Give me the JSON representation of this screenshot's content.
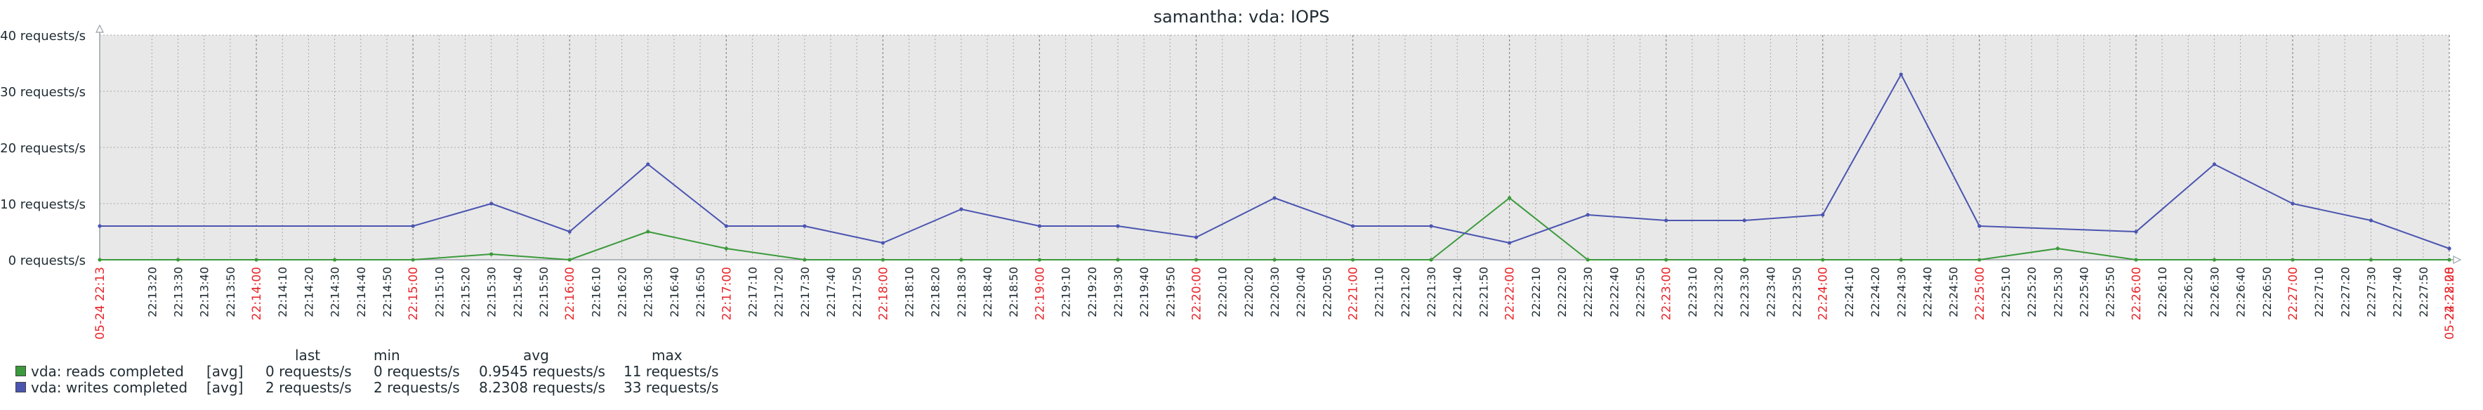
{
  "chart_data": {
    "type": "line",
    "title": "samantha: vda: IOPS",
    "xlabel": "",
    "ylabel": "",
    "start_label": "05-24 22:13",
    "end_label": "05-24 22:28",
    "x_major_labels": [
      "22:14:00",
      "22:15:00",
      "22:16:00",
      "22:17:00",
      "22:18:00",
      "22:19:00",
      "22:20:00",
      "22:21:00",
      "22:22:00",
      "22:23:00",
      "22:24:00",
      "22:25:00",
      "22:26:00",
      "22:27:00",
      "22:28:00"
    ],
    "x_minor_labels": [
      "22:13:20",
      "22:13:30",
      "22:13:40",
      "22:13:50",
      "22:14:10",
      "22:14:20",
      "22:14:30",
      "22:14:40",
      "22:14:50",
      "22:15:10",
      "22:15:20",
      "22:15:30",
      "22:15:40",
      "22:15:50",
      "22:16:10",
      "22:16:20",
      "22:16:30",
      "22:16:40",
      "22:16:50",
      "22:17:10",
      "22:17:20",
      "22:17:30",
      "22:17:40",
      "22:17:50",
      "22:18:10",
      "22:18:20",
      "22:18:30",
      "22:18:40",
      "22:18:50",
      "22:19:10",
      "22:19:20",
      "22:19:30",
      "22:19:40",
      "22:19:50",
      "22:20:10",
      "22:20:20",
      "22:20:30",
      "22:20:40",
      "22:20:50",
      "22:21:10",
      "22:21:20",
      "22:21:30",
      "22:21:40",
      "22:21:50",
      "22:22:10",
      "22:22:20",
      "22:22:30",
      "22:22:40",
      "22:22:50",
      "22:23:10",
      "22:23:20",
      "22:23:30",
      "22:23:40",
      "22:23:50",
      "22:24:10",
      "22:24:20",
      "22:24:30",
      "22:24:40",
      "22:24:50",
      "22:25:10",
      "22:25:20",
      "22:25:30",
      "22:25:40",
      "22:25:50",
      "22:26:10",
      "22:26:20",
      "22:26:30",
      "22:26:40",
      "22:26:50",
      "22:27:10",
      "22:27:20",
      "22:27:30",
      "22:27:40",
      "22:27:50"
    ],
    "y_ticks": [
      "0 requests/s",
      "10 requests/s",
      "20 requests/s",
      "30 requests/s",
      "40 requests/s"
    ],
    "ylim": [
      0,
      40
    ],
    "grid": true,
    "legend_position": "bottom-left",
    "colors": {
      "plot_bg": "#e8e8e8",
      "grid": "#a9a9a9",
      "axis": "#9aa3a8",
      "major_label": "#e8262b",
      "text": "#1f2c33"
    },
    "series": [
      {
        "name": "vda: reads completed",
        "color": "#3b9a3b",
        "points": [
          {
            "x": "22:13:00",
            "y": 0
          },
          {
            "x": "22:13:30",
            "y": 0
          },
          {
            "x": "22:14:00",
            "y": 0
          },
          {
            "x": "22:14:30",
            "y": 0
          },
          {
            "x": "22:15:00",
            "y": 0
          },
          {
            "x": "22:15:30",
            "y": 1
          },
          {
            "x": "22:16:00",
            "y": 0
          },
          {
            "x": "22:16:30",
            "y": 5
          },
          {
            "x": "22:17:00",
            "y": 2
          },
          {
            "x": "22:17:30",
            "y": 0
          },
          {
            "x": "22:18:00",
            "y": 0
          },
          {
            "x": "22:18:30",
            "y": 0
          },
          {
            "x": "22:19:00",
            "y": 0
          },
          {
            "x": "22:19:30",
            "y": 0
          },
          {
            "x": "22:20:00",
            "y": 0
          },
          {
            "x": "22:20:30",
            "y": 0
          },
          {
            "x": "22:21:00",
            "y": 0
          },
          {
            "x": "22:21:30",
            "y": 0
          },
          {
            "x": "22:22:00",
            "y": 11
          },
          {
            "x": "22:22:30",
            "y": 0
          },
          {
            "x": "22:23:00",
            "y": 0
          },
          {
            "x": "22:23:30",
            "y": 0
          },
          {
            "x": "22:24:00",
            "y": 0
          },
          {
            "x": "22:24:30",
            "y": 0
          },
          {
            "x": "22:25:00",
            "y": 0
          },
          {
            "x": "22:25:30",
            "y": 2
          },
          {
            "x": "22:26:00",
            "y": 0
          },
          {
            "x": "22:26:30",
            "y": 0
          },
          {
            "x": "22:27:00",
            "y": 0
          },
          {
            "x": "22:27:30",
            "y": 0
          },
          {
            "x": "22:28:00",
            "y": 0
          }
        ]
      },
      {
        "name": "vda: writes completed",
        "color": "#4b55b0",
        "points": [
          {
            "x": "22:13:00",
            "y": 6
          },
          {
            "x": "22:15:00",
            "y": 6
          },
          {
            "x": "22:15:30",
            "y": 10
          },
          {
            "x": "22:16:00",
            "y": 5
          },
          {
            "x": "22:16:30",
            "y": 17
          },
          {
            "x": "22:17:00",
            "y": 6
          },
          {
            "x": "22:17:30",
            "y": 6
          },
          {
            "x": "22:18:00",
            "y": 3
          },
          {
            "x": "22:18:30",
            "y": 9
          },
          {
            "x": "22:19:00",
            "y": 6
          },
          {
            "x": "22:19:30",
            "y": 6
          },
          {
            "x": "22:20:00",
            "y": 4
          },
          {
            "x": "22:20:30",
            "y": 11
          },
          {
            "x": "22:21:00",
            "y": 6
          },
          {
            "x": "22:21:30",
            "y": 6
          },
          {
            "x": "22:22:00",
            "y": 3
          },
          {
            "x": "22:22:30",
            "y": 8
          },
          {
            "x": "22:23:00",
            "y": 7
          },
          {
            "x": "22:23:30",
            "y": 7
          },
          {
            "x": "22:24:00",
            "y": 8
          },
          {
            "x": "22:24:30",
            "y": 33
          },
          {
            "x": "22:25:00",
            "y": 6
          },
          {
            "x": "22:26:00",
            "y": 5
          },
          {
            "x": "22:26:30",
            "y": 17
          },
          {
            "x": "22:27:00",
            "y": 10
          },
          {
            "x": "22:27:30",
            "y": 7
          },
          {
            "x": "22:28:00",
            "y": 2
          },
          {
            "x": "22:28:00",
            "y": 2
          }
        ]
      }
    ],
    "legend": {
      "headers": {
        "last": "last",
        "min": "min",
        "avg": "avg",
        "max": "max"
      },
      "rows": [
        {
          "name": "vda: reads completed",
          "func": "[avg]",
          "last": "0 requests/s",
          "min": "0 requests/s",
          "avg": "0.9545 requests/s",
          "max": "11 requests/s",
          "color": "#3b9a3b"
        },
        {
          "name": "vda: writes completed",
          "func": "[avg]",
          "last": "2 requests/s",
          "min": "2 requests/s",
          "avg": "8.2308 requests/s",
          "max": "33 requests/s",
          "color": "#4b55b0"
        }
      ]
    }
  }
}
